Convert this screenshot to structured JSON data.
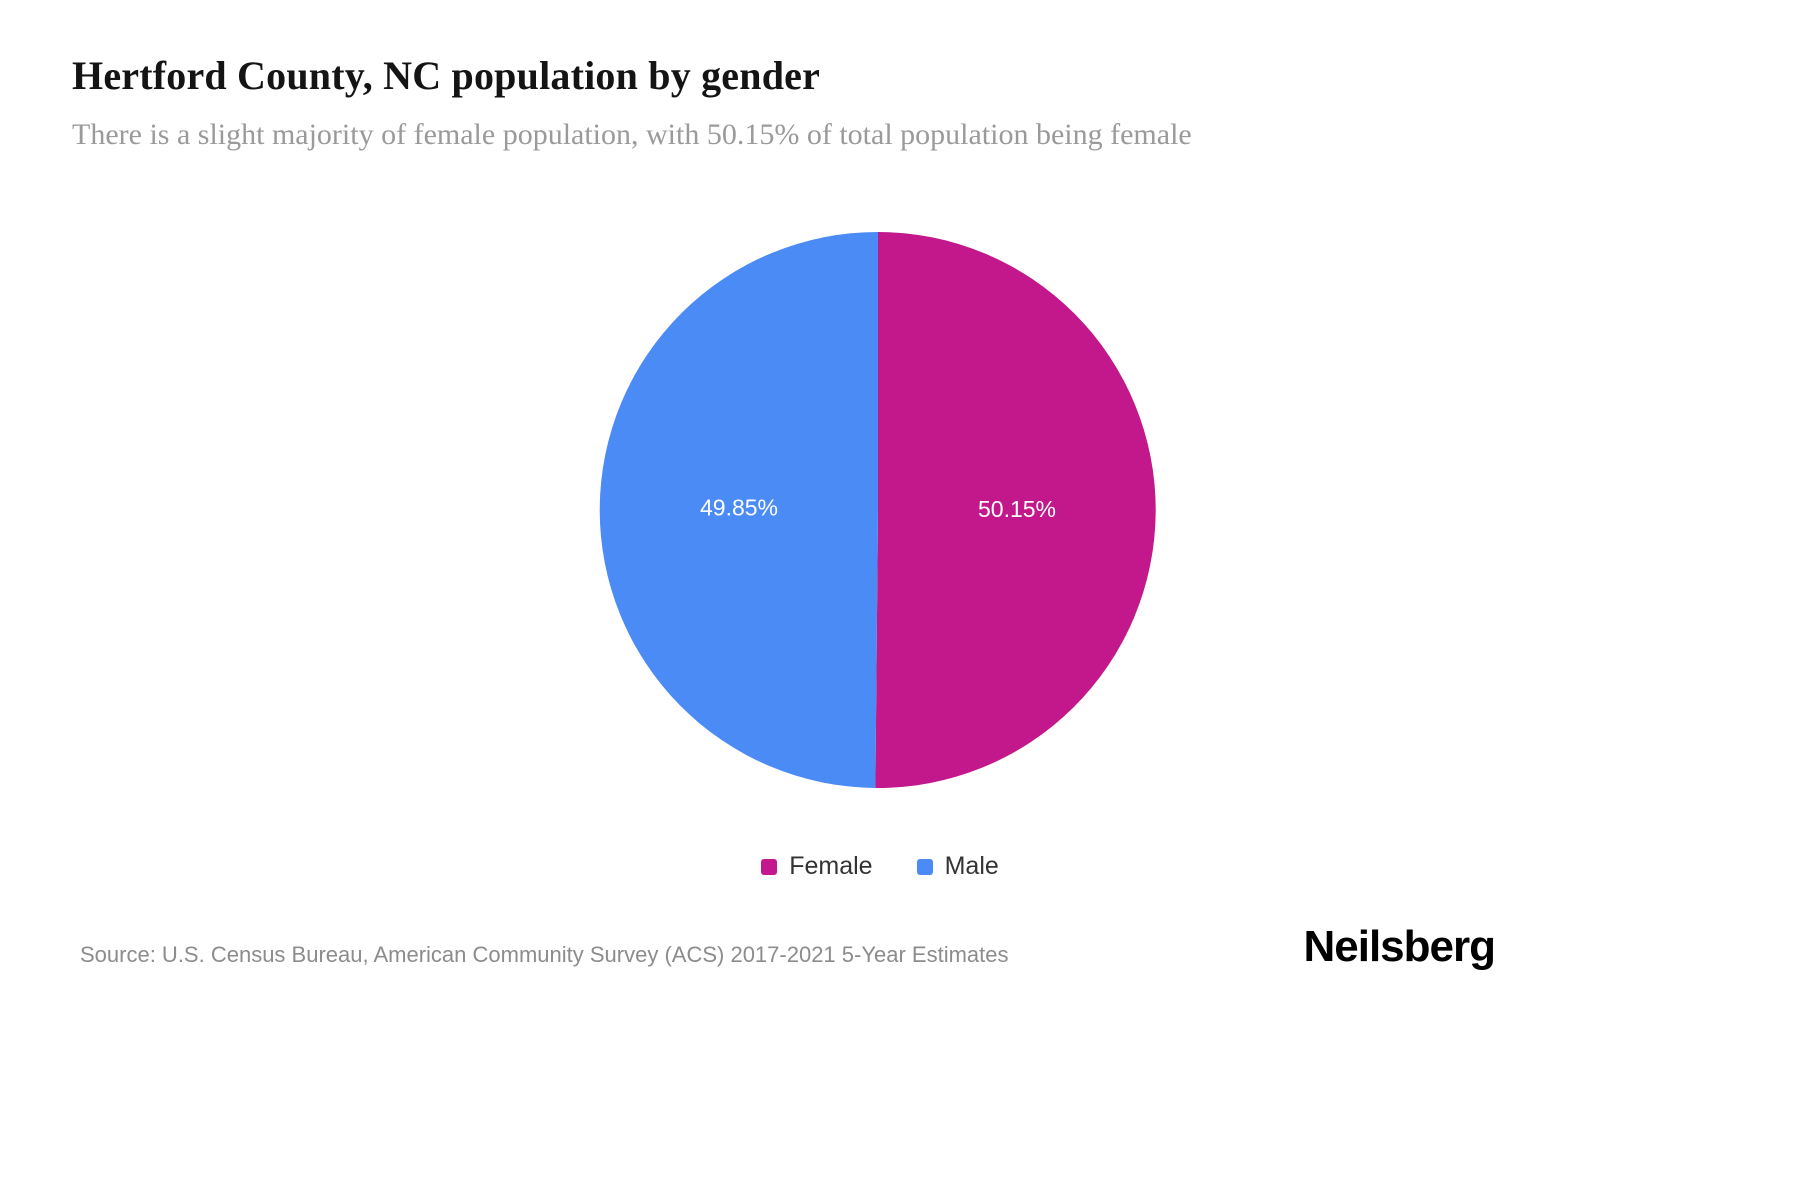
{
  "header": {
    "title": "Hertford County, NC population by gender",
    "subtitle": "There is a slight majority of female population, with 50.15% of total population being female"
  },
  "chart_data": {
    "type": "pie",
    "title": "Hertford County, NC population by gender",
    "start_angle_deg": 0,
    "direction": "clockwise",
    "legend_position": "bottom",
    "slices": [
      {
        "label": "Female",
        "value": 50.15,
        "display": "50.15%",
        "color": "#C2188C"
      },
      {
        "label": "Male",
        "value": 49.85,
        "display": "49.85%",
        "color": "#4B8BF5"
      }
    ]
  },
  "footer": {
    "source": "Source: U.S. Census Bureau, American Community Survey (ACS) 2017-2021 5-Year Estimates",
    "brand": "Neilsberg"
  },
  "colors": {
    "female": "#C2188C",
    "male": "#4B8BF5",
    "title": "#141414",
    "subtitle": "#9a9a9a",
    "source": "#8c8c8c"
  }
}
